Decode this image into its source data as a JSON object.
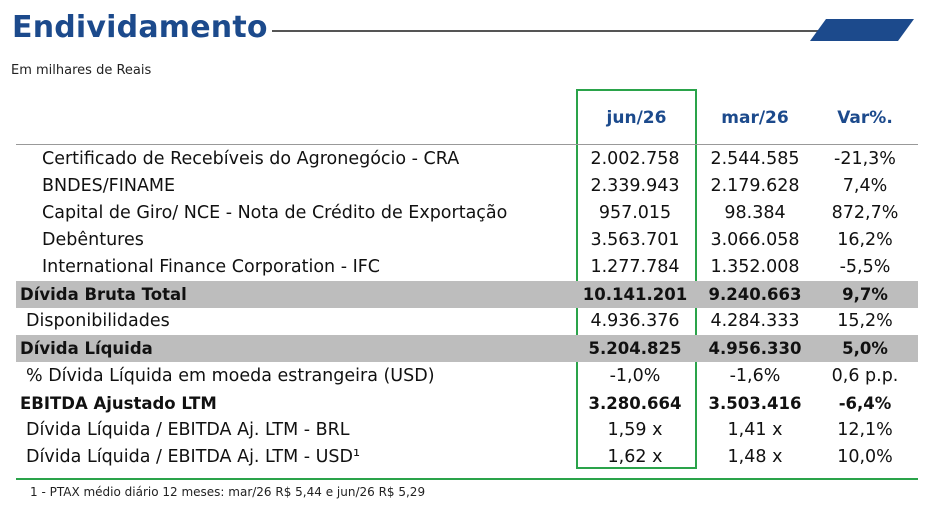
{
  "header": {
    "title": "Endividamento",
    "subtitle": "Em milhares de Reais"
  },
  "columns": [
    "jun/26",
    "mar/26",
    "Var%."
  ],
  "rows": [
    {
      "label": "Certificado de Recebíveis do Agronegócio - CRA",
      "jun": "2.002.758",
      "mar": "2.544.585",
      "var": "-21,3%"
    },
    {
      "label": "BNDES/FINAME",
      "jun": "2.339.943",
      "mar": "2.179.628",
      "var": "7,4%"
    },
    {
      "label": "Capital de Giro/ NCE - Nota de Crédito de Exportação",
      "jun": "957.015",
      "mar": "98.384",
      "var": "872,7%"
    },
    {
      "label": "Debêntures",
      "jun": "3.563.701",
      "mar": "3.066.058",
      "var": "16,2%"
    },
    {
      "label": "International Finance Corporation - IFC",
      "jun": "1.277.784",
      "mar": "1.352.008",
      "var": "-5,5%"
    },
    {
      "label": "Dívida Bruta Total",
      "jun": "10.141.201",
      "mar": "9.240.663",
      "var": "9,7%"
    },
    {
      "label": "Disponibilidades",
      "jun": "4.936.376",
      "mar": "4.284.333",
      "var": "15,2%"
    },
    {
      "label": "Dívida Líquida",
      "jun": "5.204.825",
      "mar": "4.956.330",
      "var": "5,0%"
    },
    {
      "label": "% Dívida Líquida em moeda estrangeira (USD)",
      "jun": "-1,0%",
      "mar": "-1,6%",
      "var": "0,6 p.p."
    },
    {
      "label": "EBITDA Ajustado LTM",
      "jun": "3.280.664",
      "mar": "3.503.416",
      "var": "-6,4%"
    },
    {
      "label": "Dívida Líquida / EBITDA Aj. LTM - BRL",
      "jun": "1,59 x",
      "mar": "1,41 x",
      "var": "12,1%"
    },
    {
      "label": "Dívida Líquida / EBITDA Aj. LTM - USD¹",
      "jun": "1,62 x",
      "mar": "1,48 x",
      "var": "10,0%"
    }
  ],
  "footnote": "1 - PTAX médio diário 12 meses: mar/26 R$ 5,44 e jun/26 R$ 5,29",
  "colors": {
    "title": "#1c4a8c",
    "highlight_border": "#2aa34a",
    "total_row_bg": "#bdbdbd"
  }
}
